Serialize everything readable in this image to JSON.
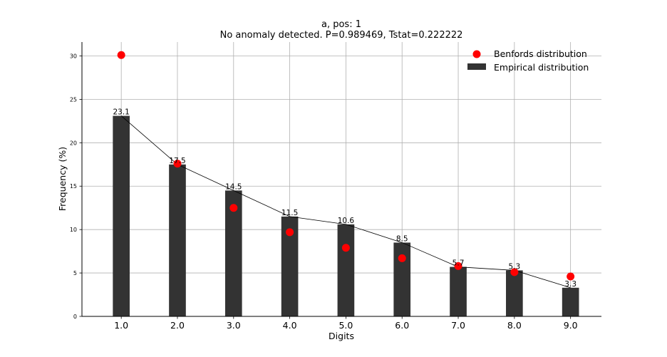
{
  "chart_data": {
    "type": "bar",
    "title": "a, pos: 1",
    "subtitle": "No anomaly detected. P=0.989469, Tstat=0.222222",
    "xlabel": "Digits",
    "ylabel": "Frequency (%)",
    "categories": [
      "1.0",
      "2.0",
      "3.0",
      "4.0",
      "5.0",
      "6.0",
      "7.0",
      "8.0",
      "9.0"
    ],
    "x": [
      1,
      2,
      3,
      4,
      5,
      6,
      7,
      8,
      9
    ],
    "xlim": [
      0.3,
      9.55
    ],
    "ylim": [
      0,
      31.6
    ],
    "yticks": [
      0,
      5,
      10,
      15,
      20,
      25,
      30
    ],
    "grid": true,
    "legend_position": "top-right",
    "series": [
      {
        "name": "Empirical distribution",
        "kind": "bar",
        "color": "#333333",
        "values": [
          23.1,
          17.5,
          14.5,
          11.5,
          10.6,
          8.5,
          5.7,
          5.3,
          3.3
        ],
        "labels": [
          "23.1",
          "17.5",
          "14.5",
          "11.5",
          "10.6",
          "8.5",
          "5.7",
          "5.3",
          "3.3"
        ]
      },
      {
        "name": "Benfords distribution",
        "kind": "scatter",
        "color": "#ff0000",
        "values": [
          30.1,
          17.6,
          12.5,
          9.7,
          7.9,
          6.7,
          5.8,
          5.1,
          4.6
        ]
      }
    ],
    "line_color": "#000000"
  }
}
